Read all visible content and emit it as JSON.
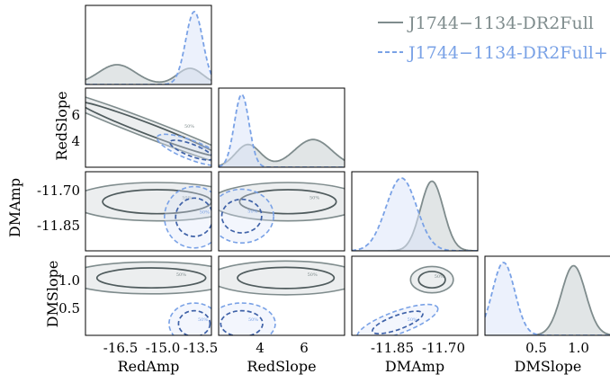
{
  "chart_data": {
    "type": "corner",
    "parameters": [
      "RedAmp",
      "RedSlope",
      "DMAmp",
      "DMSlope"
    ],
    "axis_labels": {
      "x": [
        "RedAmp",
        "RedSlope",
        "DMAmp",
        "DMSlope"
      ],
      "y": [
        "RedSlope",
        "DMAmp",
        "DMSlope"
      ]
    },
    "ranges": {
      "RedAmp": [
        -17.7,
        -13.3
      ],
      "RedSlope": [
        2.3,
        8.3
      ],
      "DMAmp": [
        -11.96,
        -11.63
      ],
      "DMSlope": [
        0.0,
        1.35
      ]
    },
    "ticks": {
      "RedAmp": [
        "-16.5",
        "-15.0",
        "-13.5"
      ],
      "RedSlope_x": [
        "4",
        "6"
      ],
      "RedSlope_y": [
        "6",
        "4"
      ],
      "DMAmp": [
        "-11.85",
        "-11.70"
      ],
      "DMSlope_x": [
        "0.5",
        "1.0"
      ],
      "DMSlope_y": [
        "1.0",
        "0.5"
      ]
    },
    "legend": {
      "placement": "top-right",
      "entries": [
        {
          "name": "J1744−1134-DR2Full",
          "color": "#7f8c8d",
          "linestyle": "solid"
        },
        {
          "name": "J1744−1134-DR2Full+",
          "color": "#7aa2e6",
          "linestyle": "dashed"
        }
      ]
    },
    "contour_level_labels": [
      "50%",
      "90%"
    ],
    "series": [
      {
        "color": "#7f8c8d",
        "fill": "#c9cfd1",
        "marginals": {
          "RedAmp": {
            "modes": [
              {
                "mu": -16.6,
                "sigma": 0.65,
                "w": 0.55
              },
              {
                "mu": -14.05,
                "sigma": 0.45,
                "w": 0.45
              }
            ]
          },
          "RedSlope": {
            "modes": [
              {
                "mu": 3.7,
                "sigma": 0.6,
                "w": 0.45
              },
              {
                "mu": 6.8,
                "sigma": 0.9,
                "w": 0.55
              }
            ]
          },
          "DMAmp": {
            "modes": [
              {
                "mu": -11.75,
                "sigma": 0.03,
                "w": 1.0
              }
            ]
          },
          "DMSlope": {
            "modes": [
              {
                "mu": 0.95,
                "sigma": 0.13,
                "w": 1.0
              }
            ]
          }
        },
        "pairs": {
          "RedAmp-RedSlope": {
            "center": [
              -15.5,
              5.2
            ],
            "radii": [
              2.6,
              0.42
            ],
            "angle_deg": 21
          },
          "RedAmp-DMAmp": {
            "center": [
              -15.2,
              -11.755
            ],
            "radii": [
              1.9,
              0.05
            ]
          },
          "RedSlope-DMAmp": {
            "center": [
              5.6,
              -11.755
            ],
            "radii": [
              2.3,
              0.05
            ]
          },
          "RedAmp-DMSlope": {
            "center": [
              -15.4,
              0.98
            ],
            "radii": [
              1.9,
              0.17
            ]
          },
          "RedSlope-DMSlope": {
            "center": [
              5.5,
              0.98
            ],
            "radii": [
              2.3,
              0.18
            ]
          },
          "DMAmp-DMSlope": {
            "center": [
              -11.75,
              0.95
            ],
            "radii": [
              0.035,
              0.14
            ]
          }
        }
      },
      {
        "color": "#7aa2e6",
        "fill": "#dce6fa",
        "marginals": {
          "RedAmp": {
            "modes": [
              {
                "mu": -13.9,
                "sigma": 0.3,
                "w": 1.0
              }
            ]
          },
          "RedSlope": {
            "modes": [
              {
                "mu": 3.4,
                "sigma": 0.35,
                "w": 1.0
              }
            ]
          },
          "DMAmp": {
            "modes": [
              {
                "mu": -11.83,
                "sigma": 0.04,
                "w": 1.0
              }
            ]
          },
          "DMSlope": {
            "modes": [
              {
                "mu": 0.2,
                "sigma": 0.12,
                "w": 1.0
              }
            ]
          }
        },
        "pairs": {
          "RedAmp-RedSlope": {
            "center": [
              -14.0,
              3.6
            ],
            "radii": [
              0.8,
              0.45
            ],
            "angle_deg": 21
          },
          "RedAmp-DMAmp": {
            "center": [
              -13.9,
              -11.82
            ],
            "radii": [
              0.65,
              0.08
            ]
          },
          "RedSlope-DMAmp": {
            "center": [
              3.4,
              -11.815
            ],
            "radii": [
              0.95,
              0.07
            ]
          },
          "RedAmp-DMSlope": {
            "center": [
              -13.9,
              0.2
            ],
            "radii": [
              0.55,
              0.22
            ]
          },
          "RedSlope-DMSlope": {
            "center": [
              3.4,
              0.2
            ],
            "radii": [
              1.0,
              0.22
            ]
          },
          "DMAmp-DMSlope": {
            "center": [
              -11.84,
              0.22
            ],
            "radii": [
              0.07,
              0.12
            ],
            "angle_deg": -20
          }
        }
      }
    ]
  }
}
